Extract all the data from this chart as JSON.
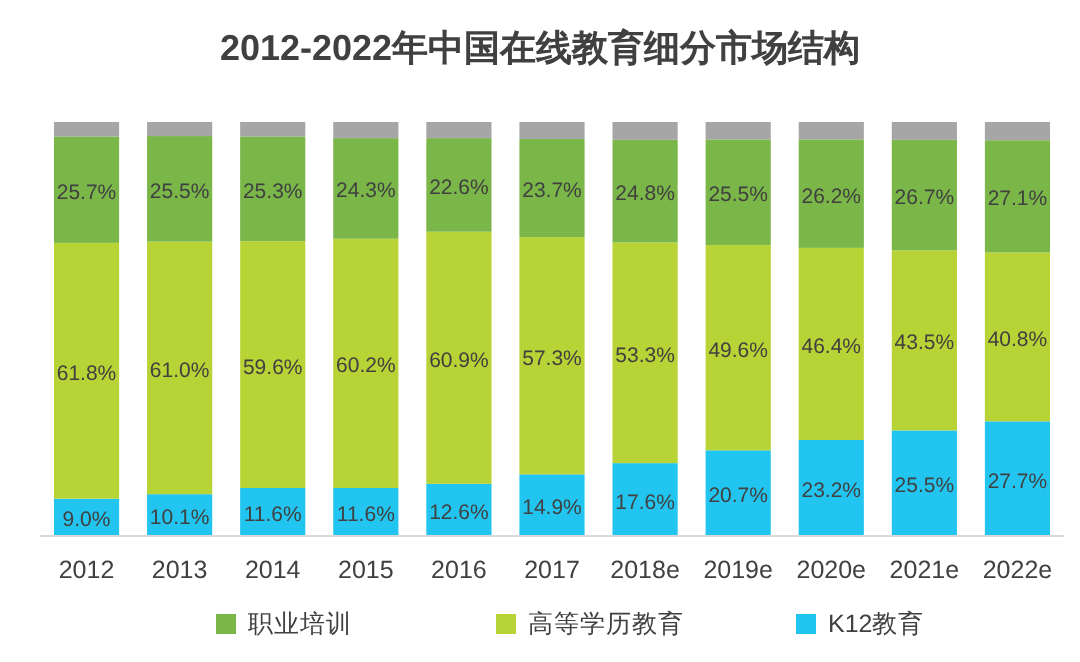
{
  "chart_data": {
    "type": "bar",
    "stacked": true,
    "title": "2012-2022年中国在线教育细分市场结构",
    "categories": [
      "2012",
      "2013",
      "2014",
      "2015",
      "2016",
      "2017",
      "2018e",
      "2019e",
      "2020e",
      "2021e",
      "2022e"
    ],
    "series": [
      {
        "name": "K12教育",
        "color": "#22c5f0",
        "values": [
          9.0,
          10.1,
          11.6,
          11.6,
          12.6,
          14.9,
          17.6,
          20.7,
          23.2,
          25.5,
          27.7
        ],
        "value_labels": [
          "9.0%",
          "10.1%",
          "11.6%",
          "11.6%",
          "12.6%",
          "14.9%",
          "17.6%",
          "20.7%",
          "23.2%",
          "25.5%",
          "27.7%"
        ]
      },
      {
        "name": "高等学历教育",
        "color": "#b8d335",
        "values": [
          61.8,
          61.0,
          59.6,
          60.2,
          60.9,
          57.3,
          53.3,
          49.6,
          46.4,
          43.5,
          40.8
        ],
        "value_labels": [
          "61.8%",
          "61.0%",
          "59.6%",
          "60.2%",
          "60.9%",
          "57.3%",
          "53.3%",
          "49.6%",
          "46.4%",
          "43.5%",
          "40.8%"
        ]
      },
      {
        "name": "职业培训",
        "color": "#7ab648",
        "values": [
          25.7,
          25.5,
          25.3,
          24.3,
          22.6,
          23.7,
          24.8,
          25.5,
          26.2,
          26.7,
          27.1
        ],
        "value_labels": [
          "25.7%",
          "25.5%",
          "25.3%",
          "24.3%",
          "22.6%",
          "23.7%",
          "24.8%",
          "25.5%",
          "26.2%",
          "26.7%",
          "27.1%"
        ]
      },
      {
        "color": "#a6a6a6",
        "values": [
          3.5,
          3.4,
          3.5,
          3.9,
          3.9,
          4.1,
          4.3,
          4.2,
          4.2,
          4.3,
          4.4
        ]
      }
    ],
    "legend": "bottom"
  }
}
